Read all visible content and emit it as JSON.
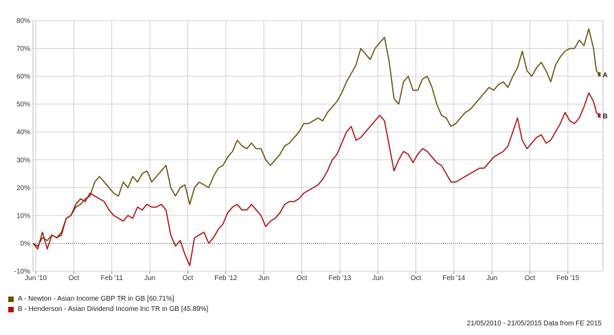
{
  "colors": {
    "series_a": "#6b4f0a",
    "series_b": "#b30d0d",
    "grid": "#d0d0d0",
    "zero_line": "#000000"
  },
  "legend": [
    {
      "key": "A",
      "label": "A - Newton - Asian Income GBP TR in GB [60.71%]"
    },
    {
      "key": "B",
      "label": "B - Henderson - Asian Dividend Income Inc TR in GB [45.89%]"
    }
  ],
  "footer": "21/05/2010 - 21/05/2015 Data from FE 2015",
  "chart_data": {
    "type": "line",
    "ylim": [
      -10,
      80
    ],
    "yticks": [
      "-10%",
      "0%",
      "10%",
      "20%",
      "30%",
      "40%",
      "50%",
      "60%",
      "70%",
      "80%"
    ],
    "xticks": [
      {
        "label": "Jun '10",
        "month": 0.3
      },
      {
        "label": "Oct",
        "month": 4.3
      },
      {
        "label": "Feb '11",
        "month": 8.3
      },
      {
        "label": "Jun",
        "month": 12.3
      },
      {
        "label": "Oct",
        "month": 16.3
      },
      {
        "label": "Feb '12",
        "month": 20.3
      },
      {
        "label": "Jun",
        "month": 24.3
      },
      {
        "label": "Oct",
        "month": 28.3
      },
      {
        "label": "Feb '13",
        "month": 32.3
      },
      {
        "label": "Jun",
        "month": 36.3
      },
      {
        "label": "Oct",
        "month": 40.3
      },
      {
        "label": "Feb '14",
        "month": 44.3
      },
      {
        "label": "Jun",
        "month": 48.3
      },
      {
        "label": "Oct",
        "month": 52.3
      },
      {
        "label": "Feb '15",
        "month": 56.3
      }
    ],
    "series": [
      {
        "name": "A - Newton - Asian Income GBP TR in GB [60.71%]",
        "end_label": "A",
        "points": [
          [
            0,
            0
          ],
          [
            0.5,
            -1
          ],
          [
            1,
            2
          ],
          [
            1.5,
            1
          ],
          [
            2,
            3
          ],
          [
            2.5,
            2
          ],
          [
            3,
            4
          ],
          [
            3.5,
            9
          ],
          [
            4,
            10
          ],
          [
            4.5,
            13
          ],
          [
            5,
            14
          ],
          [
            5.5,
            16
          ],
          [
            6,
            17
          ],
          [
            6.5,
            22
          ],
          [
            7,
            24
          ],
          [
            7.5,
            22
          ],
          [
            8,
            20
          ],
          [
            8.5,
            18
          ],
          [
            9,
            17
          ],
          [
            9.5,
            22
          ],
          [
            10,
            20
          ],
          [
            10.5,
            24
          ],
          [
            11,
            22
          ],
          [
            11.5,
            25
          ],
          [
            12,
            26
          ],
          [
            12.5,
            22
          ],
          [
            13,
            24
          ],
          [
            13.5,
            26
          ],
          [
            14,
            28
          ],
          [
            14.5,
            20
          ],
          [
            15,
            17
          ],
          [
            15.5,
            20
          ],
          [
            16,
            21
          ],
          [
            16.5,
            14
          ],
          [
            17,
            20
          ],
          [
            17.5,
            22
          ],
          [
            18,
            21
          ],
          [
            18.5,
            20
          ],
          [
            19,
            24
          ],
          [
            19.5,
            27
          ],
          [
            20,
            28
          ],
          [
            20.5,
            31
          ],
          [
            21,
            33
          ],
          [
            21.5,
            37
          ],
          [
            22,
            35
          ],
          [
            22.5,
            34
          ],
          [
            23,
            36
          ],
          [
            23.5,
            34
          ],
          [
            24,
            34
          ],
          [
            24.5,
            30
          ],
          [
            25,
            28
          ],
          [
            25.5,
            30
          ],
          [
            26,
            32
          ],
          [
            26.5,
            35
          ],
          [
            27,
            36
          ],
          [
            27.5,
            38
          ],
          [
            28,
            40
          ],
          [
            28.5,
            43
          ],
          [
            29,
            43
          ],
          [
            29.5,
            44
          ],
          [
            30,
            45
          ],
          [
            30.5,
            44
          ],
          [
            31,
            47
          ],
          [
            31.5,
            49
          ],
          [
            32,
            51
          ],
          [
            32.5,
            54
          ],
          [
            33,
            58
          ],
          [
            33.5,
            61
          ],
          [
            34,
            64
          ],
          [
            34.5,
            70
          ],
          [
            35,
            68
          ],
          [
            35.5,
            66
          ],
          [
            36,
            70
          ],
          [
            36.5,
            72
          ],
          [
            37,
            74
          ],
          [
            37.5,
            65
          ],
          [
            38,
            52
          ],
          [
            38.5,
            50
          ],
          [
            39,
            58
          ],
          [
            39.5,
            60
          ],
          [
            40,
            55
          ],
          [
            40.5,
            55
          ],
          [
            41,
            59
          ],
          [
            41.5,
            60
          ],
          [
            42,
            56
          ],
          [
            42.5,
            50
          ],
          [
            43,
            46
          ],
          [
            43.5,
            45
          ],
          [
            44,
            42
          ],
          [
            44.5,
            43
          ],
          [
            45,
            45
          ],
          [
            45.5,
            47
          ],
          [
            46,
            48
          ],
          [
            46.5,
            50
          ],
          [
            47,
            52
          ],
          [
            47.5,
            54
          ],
          [
            48,
            56
          ],
          [
            48.5,
            55
          ],
          [
            49,
            57
          ],
          [
            49.5,
            58
          ],
          [
            50,
            56
          ],
          [
            50.5,
            60
          ],
          [
            51,
            63
          ],
          [
            51.5,
            69
          ],
          [
            52,
            62
          ],
          [
            52.5,
            60
          ],
          [
            53,
            63
          ],
          [
            53.5,
            65
          ],
          [
            54,
            62
          ],
          [
            54.5,
            58
          ],
          [
            55,
            64
          ],
          [
            55.5,
            67
          ],
          [
            56,
            69
          ],
          [
            56.5,
            70
          ],
          [
            57,
            70
          ],
          [
            57.5,
            73
          ],
          [
            58,
            71
          ],
          [
            58.5,
            77
          ],
          [
            59,
            70
          ],
          [
            59.3,
            62
          ],
          [
            59.6,
            60.7
          ]
        ]
      },
      {
        "name": "B - Henderson - Asian Dividend Income Inc TR in GB [45.89%]",
        "end_label": "B",
        "points": [
          [
            0,
            0
          ],
          [
            0.5,
            -2
          ],
          [
            1,
            4
          ],
          [
            1.5,
            -2
          ],
          [
            2,
            3
          ],
          [
            2.5,
            2
          ],
          [
            3,
            3
          ],
          [
            3.5,
            9
          ],
          [
            4,
            10
          ],
          [
            4.5,
            14
          ],
          [
            5,
            16
          ],
          [
            5.5,
            15
          ],
          [
            6,
            18
          ],
          [
            6.5,
            17
          ],
          [
            7,
            16
          ],
          [
            7.5,
            15
          ],
          [
            8,
            12
          ],
          [
            8.5,
            10
          ],
          [
            9,
            9
          ],
          [
            9.5,
            8
          ],
          [
            10,
            10
          ],
          [
            10.5,
            9
          ],
          [
            11,
            13
          ],
          [
            11.5,
            12
          ],
          [
            12,
            14
          ],
          [
            12.5,
            13
          ],
          [
            13,
            13
          ],
          [
            13.5,
            14
          ],
          [
            14,
            12
          ],
          [
            14.5,
            3
          ],
          [
            15,
            -1
          ],
          [
            15.5,
            1
          ],
          [
            16,
            -4
          ],
          [
            16.5,
            -8
          ],
          [
            17,
            2
          ],
          [
            17.5,
            3
          ],
          [
            18,
            4
          ],
          [
            18.5,
            0
          ],
          [
            19,
            2
          ],
          [
            19.5,
            5
          ],
          [
            20,
            7
          ],
          [
            20.5,
            11
          ],
          [
            21,
            13
          ],
          [
            21.5,
            14
          ],
          [
            22,
            12
          ],
          [
            22.5,
            12
          ],
          [
            23,
            14
          ],
          [
            23.5,
            12
          ],
          [
            24,
            10
          ],
          [
            24.5,
            6
          ],
          [
            25,
            8
          ],
          [
            25.5,
            9
          ],
          [
            26,
            11
          ],
          [
            26.5,
            14
          ],
          [
            27,
            15
          ],
          [
            27.5,
            15
          ],
          [
            28,
            16
          ],
          [
            28.5,
            18
          ],
          [
            29,
            19
          ],
          [
            29.5,
            20
          ],
          [
            30,
            21
          ],
          [
            30.5,
            23
          ],
          [
            31,
            26
          ],
          [
            31.5,
            30
          ],
          [
            32,
            32
          ],
          [
            32.5,
            36
          ],
          [
            33,
            40
          ],
          [
            33.5,
            42
          ],
          [
            34,
            37
          ],
          [
            34.5,
            38
          ],
          [
            35,
            40
          ],
          [
            35.5,
            42
          ],
          [
            36,
            44
          ],
          [
            36.5,
            46
          ],
          [
            37,
            44
          ],
          [
            37.5,
            35
          ],
          [
            38,
            26
          ],
          [
            38.5,
            30
          ],
          [
            39,
            33
          ],
          [
            39.5,
            32
          ],
          [
            40,
            29
          ],
          [
            40.5,
            32
          ],
          [
            41,
            34
          ],
          [
            41.5,
            33
          ],
          [
            42,
            31
          ],
          [
            42.5,
            29
          ],
          [
            43,
            28
          ],
          [
            43.5,
            25
          ],
          [
            44,
            22
          ],
          [
            44.5,
            22
          ],
          [
            45,
            23
          ],
          [
            45.5,
            24
          ],
          [
            46,
            25
          ],
          [
            46.5,
            26
          ],
          [
            47,
            27
          ],
          [
            47.5,
            27
          ],
          [
            48,
            29
          ],
          [
            48.5,
            31
          ],
          [
            49,
            32
          ],
          [
            49.5,
            33
          ],
          [
            50,
            35
          ],
          [
            50.5,
            40
          ],
          [
            51,
            45
          ],
          [
            51.5,
            37
          ],
          [
            52,
            34
          ],
          [
            52.5,
            36
          ],
          [
            53,
            38
          ],
          [
            53.5,
            39
          ],
          [
            54,
            36
          ],
          [
            54.5,
            37
          ],
          [
            55,
            40
          ],
          [
            55.5,
            43
          ],
          [
            56,
            47
          ],
          [
            56.5,
            44
          ],
          [
            57,
            43
          ],
          [
            57.5,
            45
          ],
          [
            58,
            49
          ],
          [
            58.5,
            54
          ],
          [
            59,
            51
          ],
          [
            59.3,
            47
          ],
          [
            59.6,
            45.89
          ]
        ]
      }
    ]
  }
}
